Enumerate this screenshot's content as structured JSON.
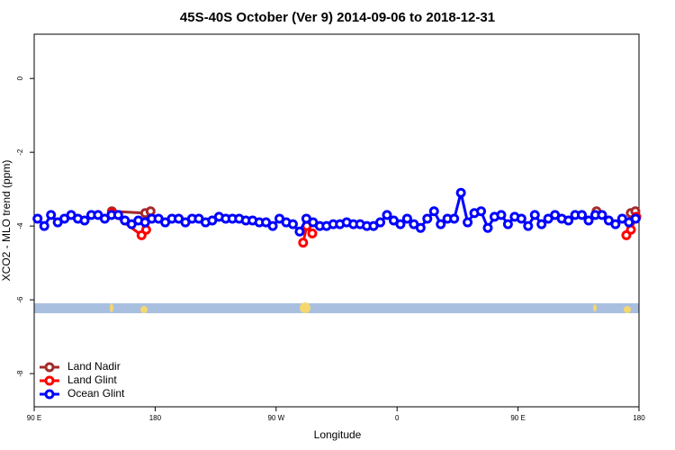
{
  "chart_data": {
    "type": "line",
    "title": "45S-40S October (Ver 9)   2014-09-06 to 2018-12-31",
    "x_label": "Longitude",
    "y_label": "XCO2 - MLO trend (ppm)",
    "xlim": [
      90,
      540
    ],
    "xticks": [
      {
        "value": 90,
        "label": "90 E"
      },
      180,
      {
        "value": 270,
        "label": "90 W"
      },
      {
        "value": 360,
        "label": "0"
      },
      {
        "value": 450,
        "label": "90 E"
      },
      {
        "value": 540,
        "label": "180"
      }
    ],
    "ylim": [
      -8.9,
      1.2
    ],
    "yticks": [
      0,
      -2,
      -4,
      -6,
      -8
    ],
    "legend": "bottom-left",
    "series": [
      {
        "name": "Land Nadir",
        "color": "#a52a2a",
        "x": [
          147.8,
          172.6,
          176.6,
          null,
          508.4,
          null,
          533.9,
          537.3
        ],
        "values": [
          -3.6,
          -3.65,
          -3.6,
          null,
          -3.6,
          null,
          -3.65,
          -3.6
        ]
      },
      {
        "name": "Land Glint",
        "color": "#ff0000",
        "x": [
          147.8,
          169.9,
          173.3,
          null,
          290.1,
          292.8,
          296.9,
          null,
          530.6,
          534.0,
          538.0
        ],
        "values": [
          -3.65,
          -4.25,
          -4.1,
          null,
          -4.45,
          -4.0,
          -4.2,
          null,
          -4.25,
          -4.1,
          -3.75
        ]
      },
      {
        "name": "Ocean Glint",
        "color": "#0000ff",
        "x": [
          92.5,
          97.5,
          102.5,
          107.5,
          112.5,
          117.5,
          122.5,
          127.5,
          132.5,
          137.5,
          142.5,
          147.5,
          152.5,
          157.5,
          162.5,
          167.5,
          172.5,
          177.5,
          182.5,
          187.5,
          192.5,
          197.5,
          202.5,
          207.5,
          212.5,
          217.5,
          222.5,
          227.5,
          232.5,
          237.5,
          242.5,
          247.5,
          252.5,
          257.5,
          262.5,
          267.5,
          272.5,
          277.5,
          282.5,
          287.5,
          292.5,
          297.5,
          302.5,
          307.5,
          312.5,
          317.5,
          322.5,
          327.5,
          332.5,
          337.5,
          342.5,
          347.5,
          352.5,
          357.5,
          362.5,
          367.5,
          372.5,
          377.5,
          382.5,
          387.5,
          392.5,
          397.5,
          402.5,
          407.5,
          412.5,
          417.5,
          422.5,
          427.5,
          432.5,
          437.5,
          442.5,
          447.5,
          452.5,
          457.5,
          462.5,
          467.5,
          472.5,
          477.5,
          482.5,
          487.5,
          492.5,
          497.5,
          502.5,
          507.5,
          512.5,
          517.5,
          522.5,
          527.5,
          532.5,
          537.5
        ],
        "values": [
          -3.8,
          -4.0,
          -3.7,
          -3.9,
          -3.8,
          -3.7,
          -3.8,
          -3.85,
          -3.7,
          -3.7,
          -3.8,
          -3.7,
          -3.7,
          -3.85,
          -3.95,
          -3.85,
          -3.9,
          -3.8,
          -3.8,
          -3.9,
          -3.8,
          -3.8,
          -3.9,
          -3.8,
          -3.8,
          -3.9,
          -3.85,
          -3.75,
          -3.8,
          -3.8,
          -3.8,
          -3.85,
          -3.85,
          -3.9,
          -3.9,
          -4.0,
          -3.8,
          -3.9,
          -3.95,
          -4.15,
          -3.8,
          -3.9,
          -4.0,
          -4.0,
          -3.95,
          -3.95,
          -3.9,
          -3.95,
          -3.95,
          -4.0,
          -4.0,
          -3.9,
          -3.7,
          -3.85,
          -3.95,
          -3.8,
          -3.95,
          -4.05,
          -3.8,
          -3.6,
          -3.95,
          -3.8,
          -3.8,
          -3.1,
          -3.9,
          -3.65,
          -3.6,
          -4.05,
          -3.75,
          -3.7,
          -3.95,
          -3.75,
          -3.8,
          -4.0,
          -3.7,
          -3.95,
          -3.8,
          -3.7,
          -3.8,
          -3.85,
          -3.7,
          -3.7,
          -3.85,
          -3.7,
          -3.7,
          -3.85,
          -3.95,
          -3.8,
          -3.9,
          -3.8
        ]
      }
    ]
  }
}
